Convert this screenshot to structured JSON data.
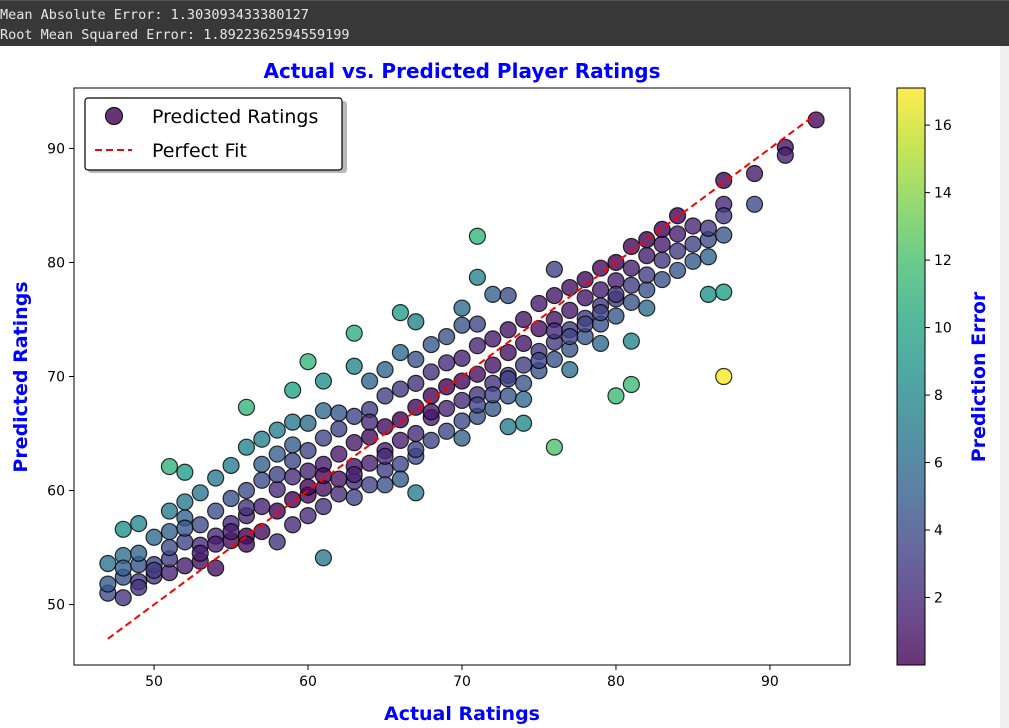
{
  "output": {
    "mae_line": "Mean Absolute Error: 1.303093433380127",
    "rmse_line": "Root Mean Squared Error: 1.8922362594559199"
  },
  "chart_data": {
    "type": "scatter",
    "title": "Actual vs. Predicted Player Ratings",
    "xlabel": "Actual Ratings",
    "ylabel": "Predicted Ratings",
    "xlim": [
      44.8,
      95.2
    ],
    "ylim": [
      44.7,
      95.3
    ],
    "xticks": [
      50,
      60,
      70,
      80,
      90
    ],
    "yticks": [
      50,
      60,
      70,
      80,
      90
    ],
    "grid": false,
    "legend": {
      "placement": "top-left",
      "entries": [
        "Predicted Ratings",
        "Perfect Fit"
      ]
    },
    "colormap": "viridis",
    "colorbar": {
      "label": "Prediction Error",
      "range": [
        0,
        17.1
      ],
      "ticks": [
        2,
        4,
        6,
        8,
        10,
        12,
        14,
        16
      ]
    },
    "perfect_fit": {
      "from": 47,
      "to": 93,
      "color": "#ff0000"
    },
    "colors": {
      "title": "#0000ff",
      "labels": "#0000ff",
      "edge": "#000000"
    },
    "points": [
      [
        47,
        51
      ],
      [
        47,
        51.8
      ],
      [
        47,
        53.6
      ],
      [
        48,
        50.6
      ],
      [
        48,
        52.4
      ],
      [
        48,
        54.3
      ],
      [
        48,
        53.2
      ],
      [
        48,
        56.6
      ],
      [
        49,
        52
      ],
      [
        49,
        53.5
      ],
      [
        49,
        54.5
      ],
      [
        49,
        51.5
      ],
      [
        49,
        57.1
      ],
      [
        50,
        52.5
      ],
      [
        50,
        53.5
      ],
      [
        50,
        55.9
      ],
      [
        50,
        53
      ],
      [
        51,
        52.8
      ],
      [
        51,
        54
      ],
      [
        51,
        56.4
      ],
      [
        51,
        58.2
      ],
      [
        51,
        55
      ],
      [
        51,
        62.1
      ],
      [
        52,
        53.4
      ],
      [
        52,
        55.5
      ],
      [
        52,
        57.6
      ],
      [
        52,
        59
      ],
      [
        52,
        56.7
      ],
      [
        52,
        61.6
      ],
      [
        53,
        53.8
      ],
      [
        53,
        55.2
      ],
      [
        53,
        57
      ],
      [
        53,
        59.8
      ],
      [
        53,
        54.5
      ],
      [
        54,
        53.2
      ],
      [
        54,
        56
      ],
      [
        54,
        58.2
      ],
      [
        54,
        61.1
      ],
      [
        54,
        55.3
      ],
      [
        55,
        55.6
      ],
      [
        55,
        57.1
      ],
      [
        55,
        59.3
      ],
      [
        55,
        62.2
      ],
      [
        55,
        56.4
      ],
      [
        56,
        56
      ],
      [
        56,
        57.8
      ],
      [
        56,
        60
      ],
      [
        56,
        63.8
      ],
      [
        56,
        58.5
      ],
      [
        56,
        55.3
      ],
      [
        56,
        67.3
      ],
      [
        57,
        56.4
      ],
      [
        57,
        58.6
      ],
      [
        57,
        60.9
      ],
      [
        57,
        64.5
      ],
      [
        57,
        62.3
      ],
      [
        58,
        55.5
      ],
      [
        58,
        58.2
      ],
      [
        58,
        60.1
      ],
      [
        58,
        63.2
      ],
      [
        58,
        65.3
      ],
      [
        58,
        61.4
      ],
      [
        59,
        57
      ],
      [
        59,
        59.2
      ],
      [
        59,
        61.2
      ],
      [
        59,
        62.6
      ],
      [
        59,
        66
      ],
      [
        59,
        64
      ],
      [
        59,
        68.8
      ],
      [
        60,
        57.8
      ],
      [
        60,
        59.6
      ],
      [
        60,
        61.7
      ],
      [
        60,
        63.5
      ],
      [
        60,
        65.9
      ],
      [
        60,
        60.3
      ],
      [
        60,
        71.3
      ],
      [
        61,
        58.6
      ],
      [
        61,
        60.2
      ],
      [
        61,
        62.3
      ],
      [
        61,
        64.6
      ],
      [
        61,
        67
      ],
      [
        61,
        61.3
      ],
      [
        61,
        69.6
      ],
      [
        61,
        54.1
      ],
      [
        62,
        59.7
      ],
      [
        62,
        61
      ],
      [
        62,
        63.2
      ],
      [
        62,
        65.4
      ],
      [
        62,
        66.8
      ],
      [
        63,
        60.8
      ],
      [
        63,
        62.1
      ],
      [
        63,
        64.2
      ],
      [
        63,
        66.5
      ],
      [
        63,
        70.9
      ],
      [
        63,
        61.4
      ],
      [
        63,
        73.8
      ],
      [
        63,
        59.4
      ],
      [
        64,
        60.5
      ],
      [
        64,
        62.4
      ],
      [
        64,
        64.7
      ],
      [
        64,
        67.1
      ],
      [
        64,
        69.6
      ],
      [
        64,
        66
      ],
      [
        65,
        61.8
      ],
      [
        65,
        63.5
      ],
      [
        65,
        65.6
      ],
      [
        65,
        68.3
      ],
      [
        65,
        70.6
      ],
      [
        65,
        63
      ],
      [
        65,
        60.5
      ],
      [
        66,
        62.3
      ],
      [
        66,
        64.4
      ],
      [
        66,
        66.2
      ],
      [
        66,
        68.9
      ],
      [
        66,
        72.1
      ],
      [
        66,
        61
      ],
      [
        66,
        75.6
      ],
      [
        67,
        63
      ],
      [
        67,
        65
      ],
      [
        67,
        67.3
      ],
      [
        67,
        69.4
      ],
      [
        67,
        71.5
      ],
      [
        67,
        63.6
      ],
      [
        67,
        74.8
      ],
      [
        67,
        59.8
      ],
      [
        68,
        64.4
      ],
      [
        68,
        66.4
      ],
      [
        68,
        68.3
      ],
      [
        68,
        70.4
      ],
      [
        68,
        72.8
      ],
      [
        68,
        66.9
      ],
      [
        69,
        65.2
      ],
      [
        69,
        67.2
      ],
      [
        69,
        69.1
      ],
      [
        69,
        71.2
      ],
      [
        69,
        73.5
      ],
      [
        70,
        66.1
      ],
      [
        70,
        67.9
      ],
      [
        70,
        69.6
      ],
      [
        70,
        71.6
      ],
      [
        70,
        74.5
      ],
      [
        70,
        76
      ],
      [
        70,
        64.6
      ],
      [
        71,
        66.5
      ],
      [
        71,
        68.4
      ],
      [
        71,
        70.2
      ],
      [
        71,
        72.7
      ],
      [
        71,
        74.6
      ],
      [
        71,
        67.5
      ],
      [
        71,
        82.3
      ],
      [
        71,
        78.7
      ],
      [
        72,
        67.2
      ],
      [
        72,
        69.4
      ],
      [
        72,
        71
      ],
      [
        72,
        73.3
      ],
      [
        72,
        68.4
      ],
      [
        72,
        77.2
      ],
      [
        73,
        68.3
      ],
      [
        73,
        70.1
      ],
      [
        73,
        72.1
      ],
      [
        73,
        74.1
      ],
      [
        73,
        69.8
      ],
      [
        73,
        77.1
      ],
      [
        73,
        65.6
      ],
      [
        74,
        69.4
      ],
      [
        74,
        71
      ],
      [
        74,
        72.9
      ],
      [
        74,
        75
      ],
      [
        74,
        68
      ],
      [
        74,
        65.9
      ],
      [
        75,
        70.5
      ],
      [
        75,
        72.2
      ],
      [
        75,
        74.2
      ],
      [
        75,
        76.4
      ],
      [
        75,
        71.4
      ],
      [
        76,
        71.5
      ],
      [
        76,
        73
      ],
      [
        76,
        75
      ],
      [
        76,
        77.1
      ],
      [
        76,
        74
      ],
      [
        76,
        79.4
      ],
      [
        76,
        63.8
      ],
      [
        77,
        72.4
      ],
      [
        77,
        74.1
      ],
      [
        77,
        75.8
      ],
      [
        77,
        77.8
      ],
      [
        77,
        73.5
      ],
      [
        77,
        70.6
      ],
      [
        78,
        73.5
      ],
      [
        78,
        75.1
      ],
      [
        78,
        76.9
      ],
      [
        78,
        78.5
      ],
      [
        78,
        74.6
      ],
      [
        79,
        74.6
      ],
      [
        79,
        76.2
      ],
      [
        79,
        77.6
      ],
      [
        79,
        79.5
      ],
      [
        79,
        75.6
      ],
      [
        79,
        72.9
      ],
      [
        80,
        75.3
      ],
      [
        80,
        76.8
      ],
      [
        80,
        78.4
      ],
      [
        80,
        80
      ],
      [
        80,
        77.2
      ],
      [
        80,
        68.3
      ],
      [
        81,
        76.5
      ],
      [
        81,
        78
      ],
      [
        81,
        79.5
      ],
      [
        81,
        81.4
      ],
      [
        81,
        73.1
      ],
      [
        81,
        69.3
      ],
      [
        82,
        77.6
      ],
      [
        82,
        78.9
      ],
      [
        82,
        80.6
      ],
      [
        82,
        82
      ],
      [
        82,
        76
      ],
      [
        83,
        78.5
      ],
      [
        83,
        80.2
      ],
      [
        83,
        81.6
      ],
      [
        83,
        82.9
      ],
      [
        84,
        79.3
      ],
      [
        84,
        81
      ],
      [
        84,
        82.5
      ],
      [
        84,
        84.1
      ],
      [
        85,
        80.1
      ],
      [
        85,
        81.6
      ],
      [
        85,
        83.2
      ],
      [
        86,
        80.5
      ],
      [
        86,
        82
      ],
      [
        86,
        83
      ],
      [
        86,
        77.2
      ],
      [
        87,
        87.2
      ],
      [
        87,
        85.1
      ],
      [
        87,
        84.1
      ],
      [
        87,
        82.4
      ],
      [
        87,
        77.4
      ],
      [
        87,
        70
      ],
      [
        89,
        87.8
      ],
      [
        89,
        85.1
      ],
      [
        91,
        90.1
      ],
      [
        91,
        89.4
      ],
      [
        93,
        92.5
      ]
    ]
  }
}
